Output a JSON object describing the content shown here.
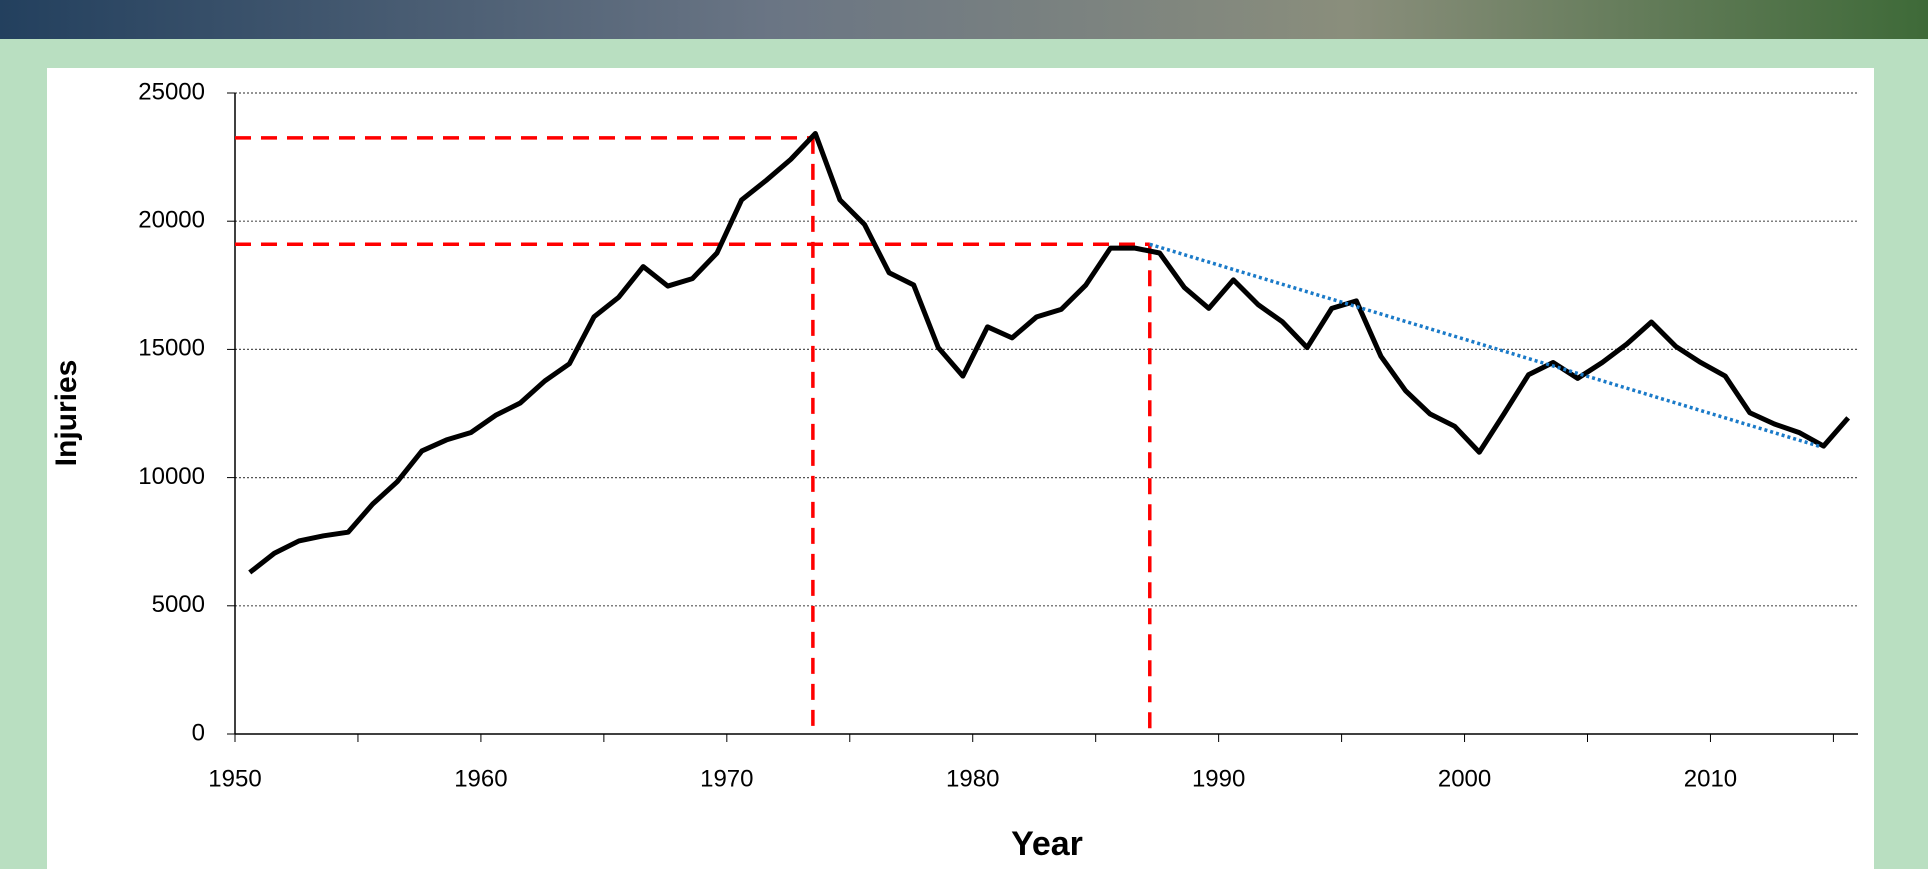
{
  "chart_data": {
    "type": "line",
    "x_label": "Year",
    "y_label": "Injuries",
    "x": [
      1950.6,
      1951.6,
      1952.6,
      1953.6,
      1954.6,
      1955.6,
      1956.6,
      1957.6,
      1958.6,
      1959.6,
      1960.6,
      1961.6,
      1962.6,
      1963.6,
      1964.6,
      1965.6,
      1966.6,
      1967.6,
      1968.6,
      1969.6,
      1970.6,
      1971.6,
      1972.6,
      1973.6,
      1974.6,
      1975.6,
      1976.6,
      1977.6,
      1978.6,
      1979.6,
      1980.6,
      1981.6,
      1982.6,
      1983.6,
      1984.6,
      1985.6,
      1986.6,
      1987.6,
      1988.6,
      1989.6,
      1990.6,
      1991.6,
      1992.6,
      1993.6,
      1994.6,
      1995.6,
      1996.6,
      1997.6,
      1998.6,
      1999.6,
      2000.6,
      2001.6,
      2002.6,
      2003.6,
      2004.6,
      2005.6,
      2006.6,
      2007.6,
      2008.6,
      2009.6,
      2010.6,
      2011.6,
      2012.6,
      2013.6,
      2014.6,
      2015.6
    ],
    "series": [
      {
        "color": "#000000",
        "values": [
          6300,
          7050,
          7530,
          7730,
          7870,
          8970,
          9840,
          11040,
          11470,
          11760,
          12430,
          12910,
          13770,
          14440,
          16270,
          17030,
          18230,
          17470,
          17760,
          18760,
          20830,
          21590,
          22410,
          23420,
          20830,
          19870,
          17990,
          17510,
          15070,
          13960,
          15880,
          15450,
          16270,
          16560,
          17510,
          18950,
          18950,
          18760,
          17420,
          16600,
          17710,
          16750,
          16070,
          15070,
          16600,
          16890,
          14730,
          13390,
          12480,
          12000,
          10990,
          12480,
          14010,
          14490,
          13870,
          14490,
          15210,
          16070,
          15110,
          14490,
          13960,
          12530,
          12090,
          11760,
          11230,
          12330
        ]
      }
    ],
    "reference_lines": [
      {
        "color": "#ff0000",
        "x": 1973.5,
        "y": 23250
      },
      {
        "color": "#ff0000",
        "x": 1987.2,
        "y": 19100
      }
    ],
    "trend_line": {
      "color": "#1a7ac8",
      "x": [
        1987.2,
        2014.5
      ],
      "values": [
        19100,
        11200
      ]
    },
    "xlim": [
      1950,
      2016
    ],
    "xticks": [
      1950,
      1960,
      1970,
      1980,
      1990,
      2000,
      2010
    ],
    "xminor_ticks": [
      1955,
      1965,
      1975,
      1985,
      1995,
      2005,
      2015
    ],
    "ylim": [
      0,
      25000
    ],
    "yticks": [
      0,
      5000,
      10000,
      15000,
      20000,
      25000
    ],
    "grid": true
  }
}
